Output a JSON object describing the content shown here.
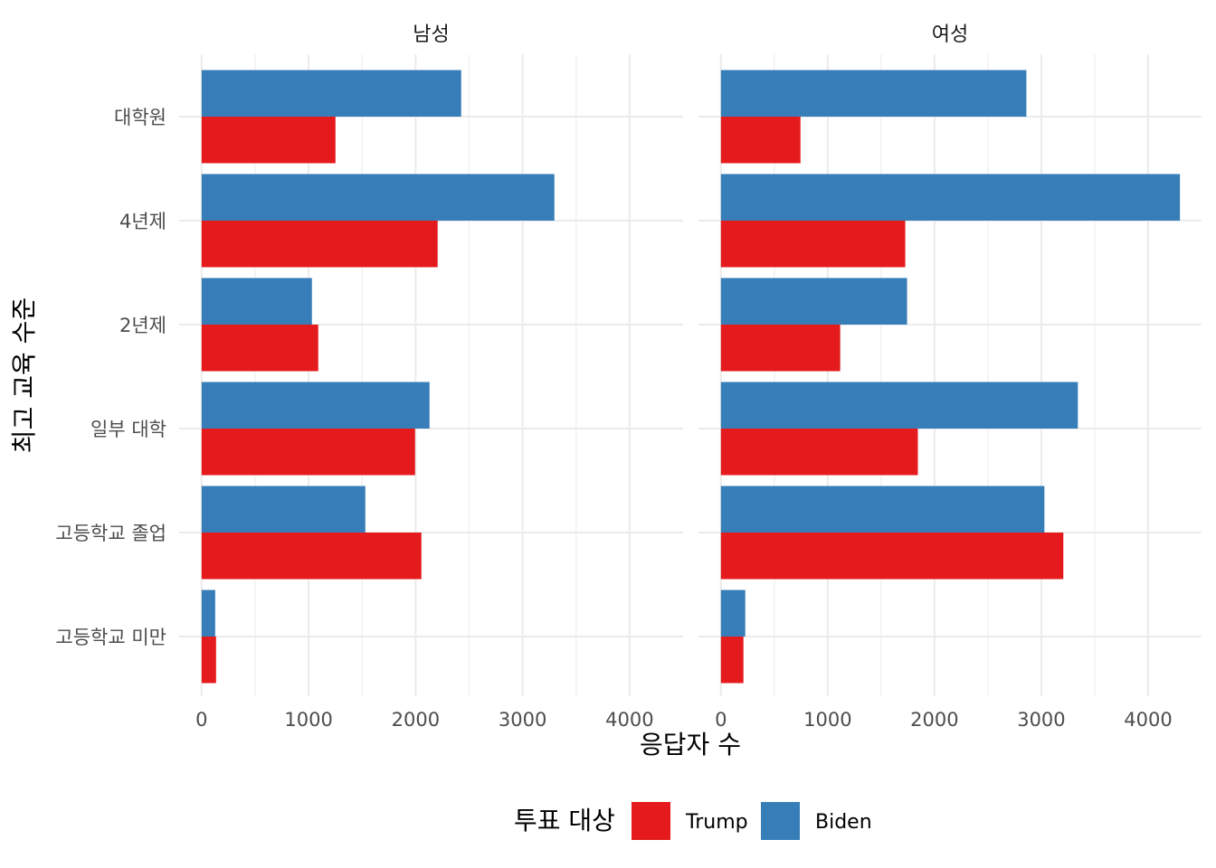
{
  "chart_data": {
    "type": "bar",
    "orientation": "horizontal",
    "facets": [
      "남성",
      "여성"
    ],
    "categories": [
      "대학원",
      "4년제",
      "2년제",
      "일부 대학",
      "고등학교 졸업",
      "고등학교 미만"
    ],
    "series": [
      {
        "name": "Trump",
        "color": "#E41A1C",
        "values": {
          "남성": [
            1251,
            2206,
            1090,
            1995,
            2054,
            135
          ],
          "여성": [
            745,
            1726,
            1117,
            1844,
            3206,
            211
          ]
        }
      },
      {
        "name": "Biden",
        "color": "#377EB8",
        "values": {
          "남성": [
            2426,
            3297,
            1031,
            2130,
            1530,
            127
          ],
          "여성": [
            2860,
            4298,
            1743,
            3342,
            3029,
            228
          ]
        }
      }
    ],
    "xlabel": "응답자 수",
    "ylabel": "최고 교육 수준",
    "xticks": [
      0,
      1000,
      2000,
      3000,
      4000
    ],
    "xlim": [
      -210,
      4500
    ],
    "legend": {
      "title": "투표 대상",
      "position": "bottom",
      "labels": [
        "Trump",
        "Biden"
      ]
    },
    "grid": true
  }
}
